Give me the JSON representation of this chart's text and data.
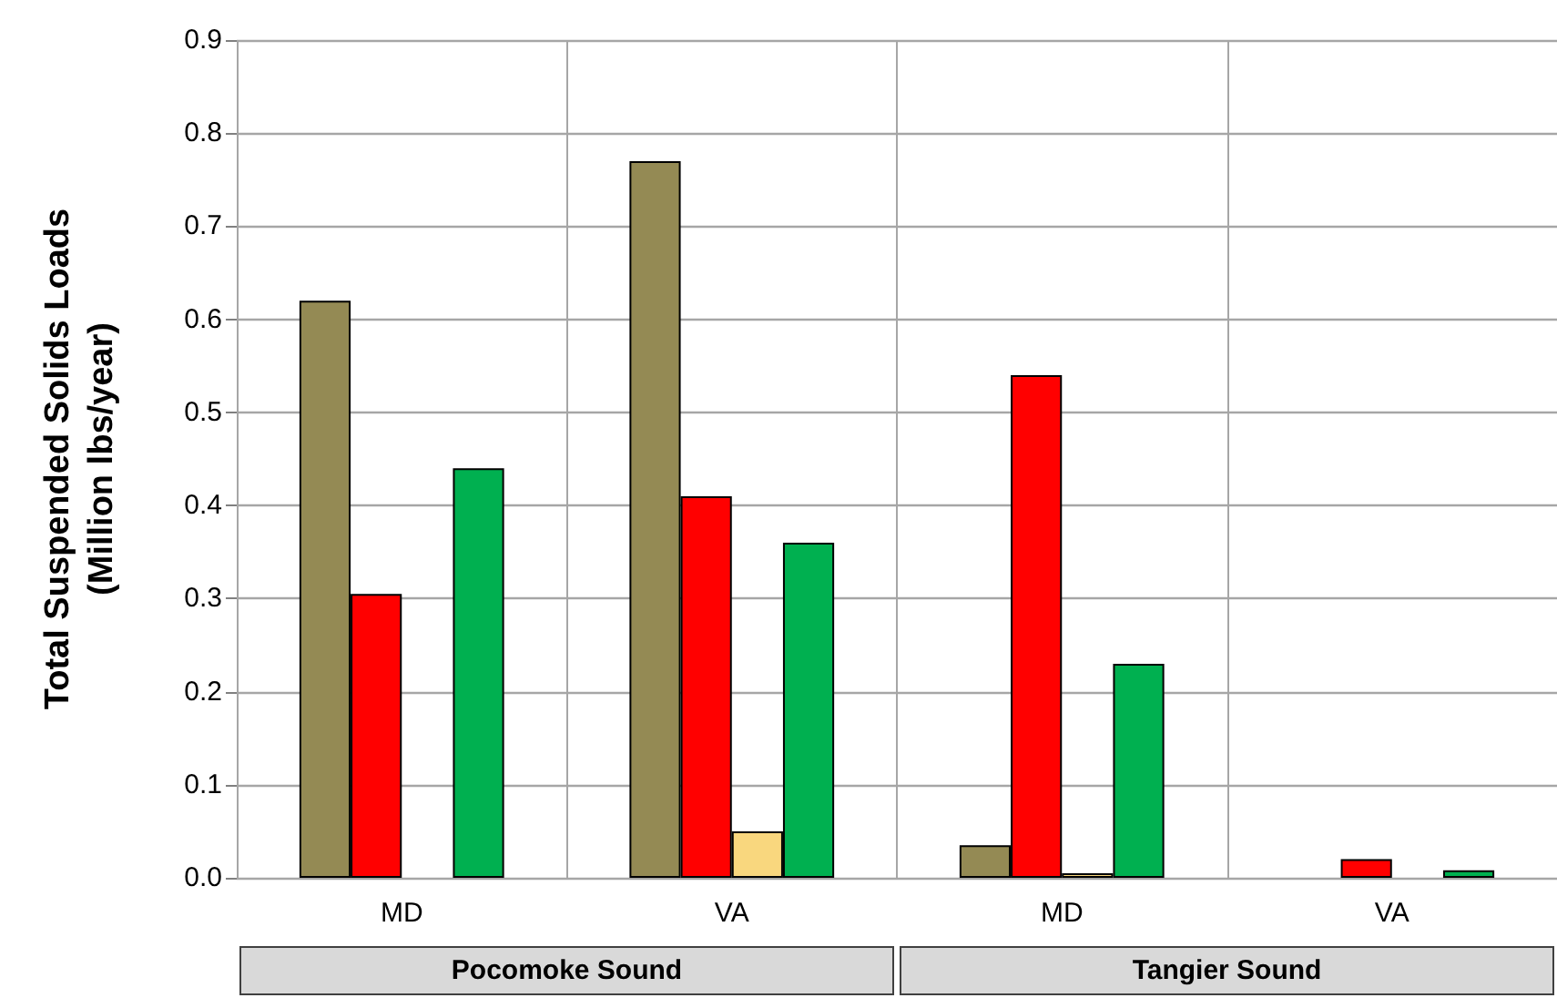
{
  "chart_data": {
    "type": "bar",
    "ylabel": "Total Suspended Solids Loads (Million lbs/year)",
    "categories": [
      "MD",
      "VA",
      "MD",
      "VA"
    ],
    "series": [
      {
        "color": "#948a54",
        "values": [
          0.62,
          0.77,
          0.035,
          0
        ]
      },
      {
        "color": "#ff0000",
        "values": [
          0.305,
          0.41,
          0.54,
          0.02
        ]
      },
      {
        "color": "#f9d77e",
        "values": [
          0,
          0.05,
          0.005,
          0
        ]
      },
      {
        "color": "#00b050",
        "values": [
          0.44,
          0.36,
          0.23,
          0.008
        ]
      }
    ],
    "ylim": [
      0,
      0.9
    ],
    "yticks": [
      {
        "value": 0,
        "label": "0.0"
      },
      {
        "value": 0.1,
        "label": "0.1"
      },
      {
        "value": 0.2,
        "label": "0.2"
      },
      {
        "value": 0.3,
        "label": "0.3"
      },
      {
        "value": 0.4,
        "label": "0.4"
      },
      {
        "value": 0.5,
        "label": "0.5"
      },
      {
        "value": 0.6,
        "label": "0.6"
      },
      {
        "value": 0.7,
        "label": "0.7"
      },
      {
        "value": 0.8,
        "label": "0.8"
      },
      {
        "value": 0.9,
        "label": "0.9"
      }
    ],
    "grid": true,
    "annotations": [
      "Pocomoke Sound",
      "Tangier Sound"
    ]
  }
}
